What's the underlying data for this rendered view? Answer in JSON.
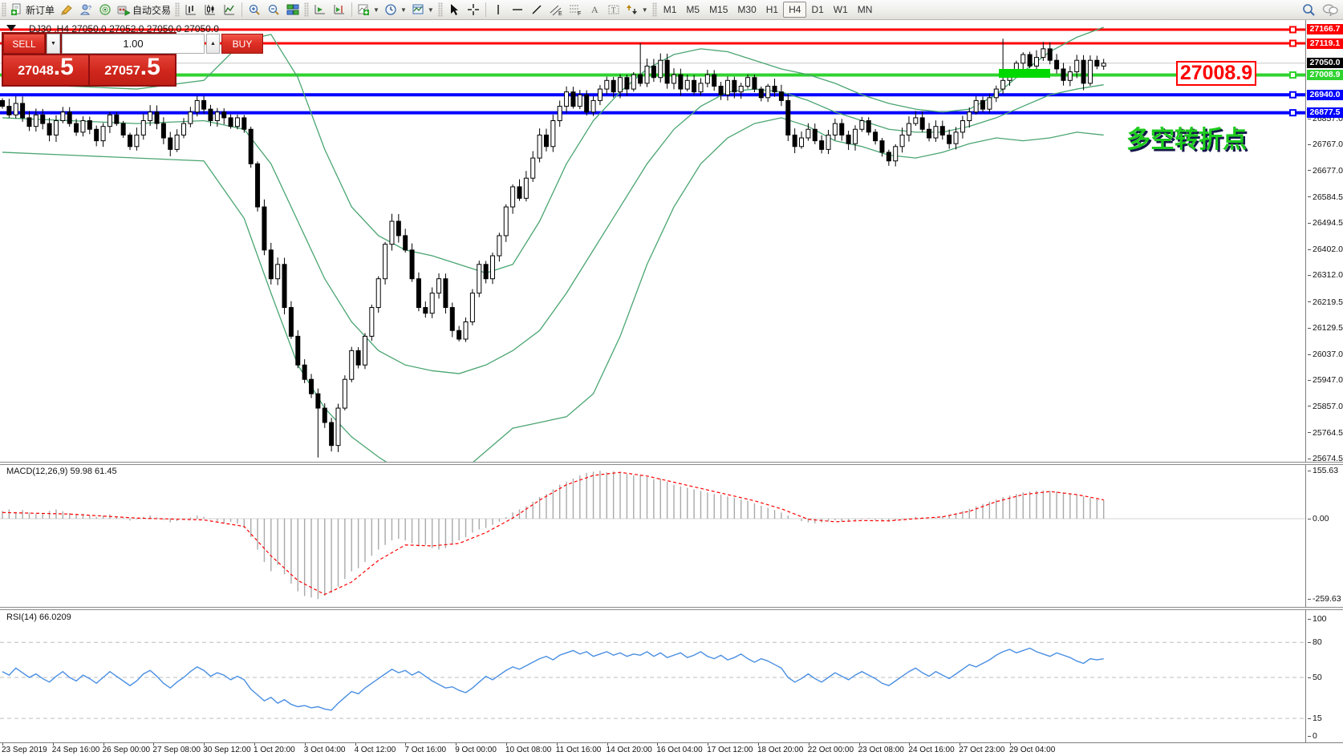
{
  "toolbar": {
    "new_order_label": "新订单",
    "autotrading_label": "自动交易",
    "timeframes": [
      "M1",
      "M5",
      "M15",
      "M30",
      "H1",
      "H4",
      "D1",
      "W1",
      "MN"
    ],
    "active_timeframe": "H4"
  },
  "header": {
    "title": "DJ30 ,H4  27050.0 27052.0 27050.0 27050.0"
  },
  "trade_panel": {
    "sell_label": "SELL",
    "buy_label": "BUY",
    "volume": "1.00",
    "sell_price_main": "27048",
    "sell_price_big": ".5",
    "buy_price_main": "27057",
    "buy_price_big": ".5"
  },
  "annotations": {
    "price_callout": "27008.9",
    "turning_point_note": "多空转折点"
  },
  "indicators": {
    "macd_label": "MACD(12,26,9) 59.98 61.45",
    "rsi_label": "RSI(14) 66.0209"
  },
  "chart_data": {
    "type": "candlestick",
    "symbol": "DJ30",
    "period": "H4",
    "ylim": [
      25650,
      27185
    ],
    "price_lines": [
      {
        "label": "27166.7",
        "price": 27166.7,
        "color": "#ff0000",
        "thick": 3,
        "chip_bg": "#ff0000",
        "handle": true
      },
      {
        "label": "27119.1",
        "price": 27119.1,
        "color": "#ff0000",
        "thick": 3,
        "chip_bg": "#ff0000",
        "handle": true
      },
      {
        "label": "27050.0",
        "price": 27050.0,
        "color": "#c9c9c9",
        "thick": 1,
        "chip_bg": "#000000",
        "handle": false
      },
      {
        "label": "27008.9",
        "price": 27008.9,
        "color": "#2fd32f",
        "thick": 4,
        "chip_bg": "#2fd32f",
        "handle": true
      },
      {
        "label": "26940.0",
        "price": 26940.0,
        "color": "#0000ff",
        "thick": 4,
        "chip_bg": "#0000ff",
        "handle": true
      },
      {
        "label": "26877.5",
        "price": 26877.5,
        "color": "#0000ff",
        "thick": 4,
        "chip_bg": "#0000ff",
        "handle": true
      }
    ],
    "price_ticks": [
      [
        "26857.0",
        26857.0
      ],
      [
        "26767.0",
        26767.0
      ],
      [
        "26677.0",
        26677.0
      ],
      [
        "26584.5",
        26584.5
      ],
      [
        "26494.5",
        26494.5
      ],
      [
        "26402.0",
        26402.0
      ],
      [
        "26312.0",
        26312.0
      ],
      [
        "26219.5",
        26219.5
      ],
      [
        "26129.5",
        26129.5
      ],
      [
        "26037.0",
        26037.0
      ],
      [
        "25947.0",
        25947.0
      ],
      [
        "25857.0",
        25857.0
      ],
      [
        "25764.5",
        25764.5
      ],
      [
        "25674.5",
        25674.5
      ]
    ],
    "macd_ticks": [
      [
        "155.63",
        155.63
      ],
      [
        "0.00",
        0
      ],
      [
        "-259.63",
        -259.63
      ]
    ],
    "rsi_ticks": [
      [
        "100",
        100
      ],
      [
        "80",
        80
      ],
      [
        "50",
        50
      ],
      [
        "15",
        15
      ],
      [
        "0",
        0
      ]
    ],
    "rsi_levels": [
      80,
      50,
      15
    ],
    "time_labels": [
      "23 Sep 2019",
      "24 Sep 16:00",
      "26 Sep 00:00",
      "27 Sep 08:00",
      "30 Sep 12:00",
      "1 Oct 20:00",
      "3 Oct 04:00",
      "4 Oct 12:00",
      "7 Oct 16:00",
      "9 Oct 00:00",
      "10 Oct 08:00",
      "11 Oct 16:00",
      "14 Oct 20:00",
      "16 Oct 04:00",
      "17 Oct 12:00",
      "18 Oct 20:00",
      "22 Oct 00:00",
      "23 Oct 08:00",
      "24 Oct 16:00",
      "27 Oct 23:00",
      "29 Oct 04:00"
    ],
    "closes": [
      26900,
      26870,
      26910,
      26860,
      26830,
      26870,
      26840,
      26800,
      26850,
      26880,
      26840,
      26810,
      26850,
      26820,
      26780,
      26830,
      26870,
      26840,
      26800,
      26760,
      26800,
      26850,
      26880,
      26840,
      26790,
      26750,
      26800,
      26840,
      26880,
      26920,
      26890,
      26850,
      26880,
      26860,
      26830,
      26860,
      26820,
      26700,
      26550,
      26400,
      26300,
      26350,
      26200,
      26100,
      26000,
      25950,
      25900,
      25850,
      25800,
      25720,
      25850,
      25950,
      26050,
      26000,
      26100,
      26200,
      26300,
      26420,
      26500,
      26450,
      26400,
      26300,
      26200,
      26180,
      26250,
      26300,
      26200,
      26120,
      26090,
      26150,
      26250,
      26350,
      26300,
      26380,
      26450,
      26550,
      26620,
      26580,
      26650,
      26720,
      26800,
      26760,
      26850,
      26900,
      26950,
      26900,
      26940,
      26880,
      26920,
      26960,
      26990,
      26950,
      27000,
      26960,
      27010,
      26980,
      27040,
      27000,
      27060,
      26980,
      27010,
      26960,
      26990,
      26950,
      26980,
      27010,
      26970,
      26940,
      26990,
      26950,
      26970,
      27000,
      26960,
      26930,
      26970,
      26950,
      26920,
      26800,
      26760,
      26790,
      26820,
      26780,
      26750,
      26800,
      26840,
      26800,
      26770,
      26820,
      26850,
      26810,
      26780,
      26740,
      26710,
      26760,
      26800,
      26840,
      26860,
      26820,
      26790,
      26830,
      26800,
      26770,
      26810,
      26850,
      26880,
      26920,
      26890,
      26930,
      26960,
      26990,
      27020,
      27050,
      27080,
      27040,
      27070,
      27100,
      27060,
      27030,
      26990,
      27020,
      27060,
      26980,
      27060,
      27040,
      27050
    ],
    "special_wicks": {
      "47": {
        "lo": 25678
      },
      "95": {
        "hi": 27120
      },
      "149": {
        "hi": 27135
      },
      "153": {
        "hi": 27090
      }
    },
    "bollinger": {
      "color": "#4aa571",
      "upper": [
        [
          0,
          26980
        ],
        [
          10,
          26970
        ],
        [
          20,
          26960
        ],
        [
          30,
          26990
        ],
        [
          36,
          27130
        ],
        [
          40,
          27150
        ],
        [
          44,
          27000
        ],
        [
          48,
          26750
        ],
        [
          52,
          26550
        ],
        [
          56,
          26450
        ],
        [
          60,
          26400
        ],
        [
          64,
          26380
        ],
        [
          68,
          26350
        ],
        [
          72,
          26320
        ],
        [
          76,
          26350
        ],
        [
          80,
          26500
        ],
        [
          84,
          26700
        ],
        [
          88,
          26850
        ],
        [
          92,
          26950
        ],
        [
          96,
          27030
        ],
        [
          100,
          27080
        ],
        [
          104,
          27100
        ],
        [
          108,
          27090
        ],
        [
          112,
          27060
        ],
        [
          116,
          27030
        ],
        [
          120,
          27010
        ],
        [
          124,
          26980
        ],
        [
          128,
          26940
        ],
        [
          132,
          26910
        ],
        [
          136,
          26890
        ],
        [
          140,
          26880
        ],
        [
          144,
          26890
        ],
        [
          148,
          26940
        ],
        [
          152,
          27020
        ],
        [
          156,
          27090
        ],
        [
          160,
          27140
        ],
        [
          164,
          27175
        ]
      ],
      "middle": [
        [
          0,
          26860
        ],
        [
          10,
          26850
        ],
        [
          20,
          26840
        ],
        [
          30,
          26850
        ],
        [
          36,
          26820
        ],
        [
          40,
          26700
        ],
        [
          44,
          26500
        ],
        [
          48,
          26300
        ],
        [
          52,
          26150
        ],
        [
          56,
          26050
        ],
        [
          60,
          26000
        ],
        [
          64,
          25980
        ],
        [
          68,
          25970
        ],
        [
          72,
          26000
        ],
        [
          76,
          26050
        ],
        [
          80,
          26120
        ],
        [
          84,
          26250
        ],
        [
          88,
          26400
        ],
        [
          92,
          26550
        ],
        [
          96,
          26700
        ],
        [
          100,
          26820
        ],
        [
          104,
          26900
        ],
        [
          108,
          26950
        ],
        [
          112,
          26960
        ],
        [
          116,
          26950
        ],
        [
          120,
          26920
        ],
        [
          124,
          26880
        ],
        [
          128,
          26850
        ],
        [
          132,
          26820
        ],
        [
          136,
          26810
        ],
        [
          140,
          26810
        ],
        [
          144,
          26830
        ],
        [
          148,
          26860
        ],
        [
          152,
          26900
        ],
        [
          156,
          26940
        ],
        [
          160,
          26960
        ],
        [
          164,
          26975
        ]
      ],
      "lower": [
        [
          0,
          26740
        ],
        [
          10,
          26730
        ],
        [
          20,
          26720
        ],
        [
          30,
          26710
        ],
        [
          36,
          26510
        ],
        [
          40,
          26250
        ],
        [
          44,
          26000
        ],
        [
          48,
          25850
        ],
        [
          52,
          25750
        ],
        [
          56,
          25680
        ],
        [
          60,
          25620
        ],
        [
          64,
          25600
        ],
        [
          68,
          25620
        ],
        [
          72,
          25700
        ],
        [
          76,
          25780
        ],
        [
          80,
          25800
        ],
        [
          84,
          25820
        ],
        [
          88,
          25900
        ],
        [
          92,
          26100
        ],
        [
          96,
          26350
        ],
        [
          100,
          26550
        ],
        [
          104,
          26700
        ],
        [
          108,
          26790
        ],
        [
          112,
          26840
        ],
        [
          116,
          26860
        ],
        [
          120,
          26830
        ],
        [
          124,
          26780
        ],
        [
          128,
          26760
        ],
        [
          132,
          26730
        ],
        [
          136,
          26720
        ],
        [
          140,
          26740
        ],
        [
          144,
          26770
        ],
        [
          148,
          26790
        ],
        [
          152,
          26780
        ],
        [
          156,
          26790
        ],
        [
          160,
          26810
        ],
        [
          164,
          26800
        ]
      ]
    },
    "macd_hist": [
      25,
      30,
      22,
      28,
      20,
      15,
      18,
      25,
      30,
      24,
      18,
      12,
      16,
      10,
      6,
      10,
      14,
      8,
      2,
      -6,
      -2,
      6,
      10,
      4,
      -4,
      -12,
      -8,
      -2,
      4,
      10,
      6,
      -2,
      -8,
      -14,
      -10,
      -16,
      -30,
      -60,
      -100,
      -140,
      -170,
      -150,
      -180,
      -210,
      -235,
      -250,
      -255,
      -260,
      -250,
      -240,
      -220,
      -195,
      -170,
      -160,
      -140,
      -120,
      -100,
      -85,
      -70,
      -65,
      -70,
      -80,
      -90,
      -85,
      -95,
      -100,
      -95,
      -85,
      -70,
      -60,
      -45,
      -35,
      -30,
      -20,
      -10,
      5,
      20,
      30,
      40,
      55,
      70,
      80,
      95,
      110,
      120,
      130,
      140,
      148,
      152,
      155,
      150,
      153,
      148,
      145,
      140,
      142,
      135,
      128,
      130,
      120,
      110,
      105,
      100,
      95,
      90,
      85,
      80,
      78,
      72,
      68,
      62,
      58,
      50,
      42,
      35,
      28,
      20,
      10,
      0,
      -8,
      -12,
      -15,
      -12,
      -8,
      -5,
      -8,
      -10,
      -6,
      -2,
      2,
      -4,
      -8,
      -10,
      -6,
      -2,
      2,
      6,
      4,
      0,
      4,
      8,
      12,
      18,
      25,
      32,
      40,
      48,
      55,
      62,
      70,
      75,
      80,
      85,
      88,
      90,
      92,
      90,
      88,
      85,
      82,
      78,
      72,
      68,
      63,
      60
    ],
    "macd_signal": [
      [
        0,
        20
      ],
      [
        10,
        15
      ],
      [
        20,
        2
      ],
      [
        30,
        -4
      ],
      [
        36,
        -25
      ],
      [
        40,
        -120
      ],
      [
        44,
        -200
      ],
      [
        48,
        -245
      ],
      [
        52,
        -205
      ],
      [
        56,
        -135
      ],
      [
        60,
        -85
      ],
      [
        64,
        -88
      ],
      [
        68,
        -80
      ],
      [
        72,
        -45
      ],
      [
        76,
        2
      ],
      [
        80,
        60
      ],
      [
        84,
        110
      ],
      [
        88,
        140
      ],
      [
        92,
        150
      ],
      [
        96,
        138
      ],
      [
        100,
        118
      ],
      [
        104,
        98
      ],
      [
        108,
        78
      ],
      [
        112,
        58
      ],
      [
        116,
        32
      ],
      [
        120,
        -2
      ],
      [
        124,
        -10
      ],
      [
        128,
        -6
      ],
      [
        132,
        -7
      ],
      [
        136,
        0
      ],
      [
        140,
        6
      ],
      [
        144,
        24
      ],
      [
        148,
        55
      ],
      [
        152,
        78
      ],
      [
        156,
        88
      ],
      [
        160,
        78
      ],
      [
        164,
        61
      ]
    ],
    "rsi_values": [
      55,
      52,
      58,
      54,
      50,
      53,
      49,
      46,
      51,
      55,
      50,
      47,
      52,
      49,
      45,
      50,
      55,
      51,
      47,
      43,
      47,
      53,
      56,
      51,
      45,
      41,
      46,
      50,
      55,
      59,
      56,
      51,
      54,
      52,
      48,
      51,
      48,
      40,
      35,
      30,
      33,
      28,
      31,
      27,
      25,
      26,
      24,
      25,
      23,
      22,
      28,
      33,
      38,
      36,
      41,
      45,
      49,
      53,
      57,
      54,
      56,
      52,
      55,
      51,
      47,
      44,
      41,
      42,
      39,
      37,
      41,
      46,
      51,
      48,
      52,
      56,
      59,
      57,
      60,
      63,
      66,
      68,
      65,
      69,
      71,
      73,
      70,
      72,
      68,
      70,
      72,
      69,
      71,
      68,
      70,
      69,
      72,
      68,
      71,
      67,
      69,
      71,
      67,
      69,
      72,
      68,
      66,
      69,
      65,
      67,
      70,
      66,
      63,
      66,
      64,
      61,
      58,
      50,
      46,
      49,
      53,
      49,
      46,
      50,
      54,
      51,
      48,
      52,
      55,
      52,
      49,
      45,
      43,
      47,
      51,
      55,
      58,
      54,
      51,
      55,
      52,
      49,
      53,
      57,
      61,
      59,
      62,
      65,
      69,
      72,
      74,
      71,
      73,
      75,
      72,
      70,
      68,
      71,
      69,
      67,
      64,
      62,
      66,
      65,
      66
    ],
    "colors": {
      "bull_body": "#ffffff",
      "bear_body": "#000000",
      "candle_line": "#000000",
      "macd_hist": "#a9a9a9",
      "macd_signal": "#ff0000",
      "rsi_line": "#4a8fe2",
      "green_zone": "#00d900",
      "callout": "#ff0000",
      "cn_note": "#1ecb1e"
    }
  }
}
